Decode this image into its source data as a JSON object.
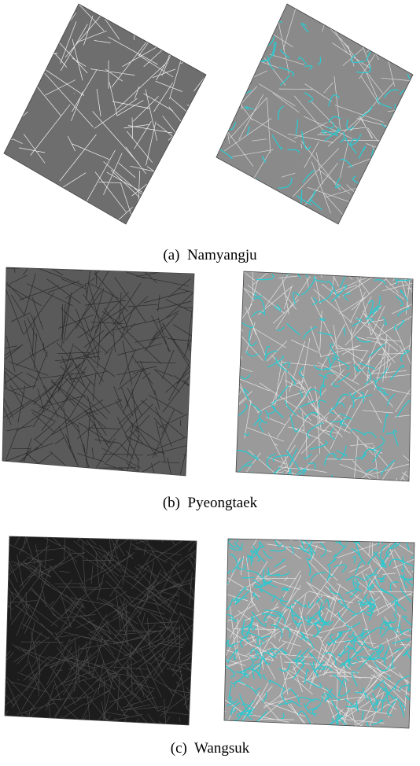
{
  "panels": [
    {
      "caption": "(a)  Namyangju"
    },
    {
      "caption": "(b)  Pyeongtaek"
    },
    {
      "caption": "(c)  Wangsuk"
    }
  ]
}
